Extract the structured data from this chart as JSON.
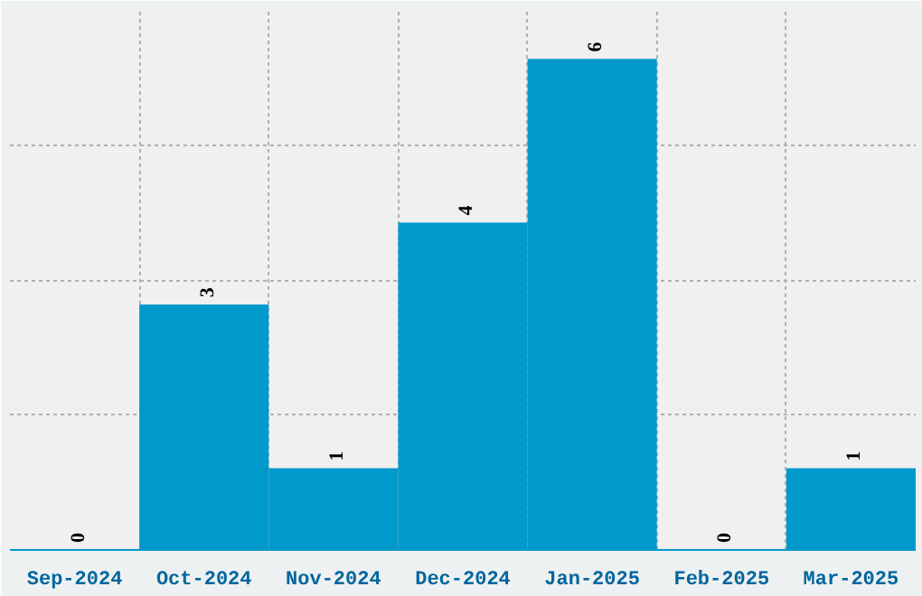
{
  "chart_data": {
    "type": "bar",
    "categories": [
      "Sep-2024",
      "Oct-2024",
      "Nov-2024",
      "Dec-2024",
      "Jan-2025",
      "Feb-2025",
      "Mar-2025"
    ],
    "values": [
      0,
      3,
      1,
      4,
      6,
      0,
      1
    ],
    "color": "#0099cc",
    "data_labels": true,
    "ylim": [
      0,
      6.6
    ],
    "yticks": [
      {
        "value": 1.65,
        "label": null
      },
      {
        "value": 3.3,
        "label": null
      },
      {
        "value": 4.95,
        "label": null
      }
    ],
    "tick_labels": "x",
    "grid": true
  }
}
